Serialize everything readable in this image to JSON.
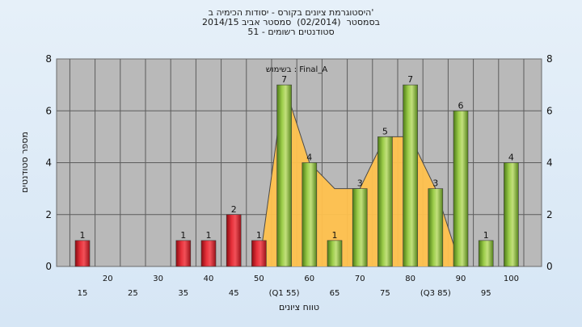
{
  "title_lines": [
    "היסטוגרמת ציונים בקורס - יסודות הכימיה ב'",
    "בסמסטר  (02/2014)  סמסטר אביב 2014/15",
    "51 - סטודנטים רשומים"
  ],
  "chart_data": {
    "type": "bar",
    "xlabel": "טווח ציונים",
    "ylabel": "מספר סטודנטים",
    "ylim": [
      0,
      8
    ],
    "yticks": [
      0,
      2,
      4,
      6,
      8
    ],
    "grid": true,
    "categories": [
      "15",
      "20",
      "25",
      "30",
      "35",
      "40",
      "45",
      "50",
      "55",
      "60",
      "65",
      "70",
      "75",
      "80",
      "85",
      "90",
      "95",
      "100"
    ],
    "x_tick_labels": [
      "15",
      "20",
      "25",
      "30",
      "35",
      "40",
      "45",
      "50",
      "(Q1 55)",
      "60",
      "65",
      "70",
      "75",
      "80",
      "(Q3 85)",
      "90",
      "95",
      "100"
    ],
    "values": [
      1,
      0,
      0,
      0,
      1,
      1,
      2,
      1,
      7,
      4,
      1,
      3,
      5,
      7,
      3,
      6,
      1,
      4
    ],
    "data_labels": [
      "1",
      "",
      "",
      "",
      "1",
      "1",
      "2",
      "1",
      "7",
      "4",
      "1",
      "3",
      "5",
      "7",
      "3",
      "6",
      "1",
      "4"
    ],
    "bar_colors": [
      "red",
      "red",
      "red",
      "red",
      "red",
      "red",
      "red",
      "red",
      "green",
      "green",
      "green",
      "green",
      "green",
      "green",
      "green",
      "green",
      "green",
      "green"
    ],
    "area_series": {
      "legend": "בשימוש : Final_A",
      "points": [
        [
          50,
          0
        ],
        [
          55,
          7
        ],
        [
          60,
          4
        ],
        [
          65,
          3
        ],
        [
          70,
          3
        ],
        [
          75,
          5
        ],
        [
          80,
          5
        ],
        [
          85,
          3
        ],
        [
          90,
          0
        ]
      ]
    },
    "colors": {
      "red_bar": "#e02030",
      "green_bar": "#8cc43c",
      "area_fill": "#ffc14d",
      "area_line": "#4a4a4a",
      "plot_bg": "#b9b9b9"
    }
  }
}
